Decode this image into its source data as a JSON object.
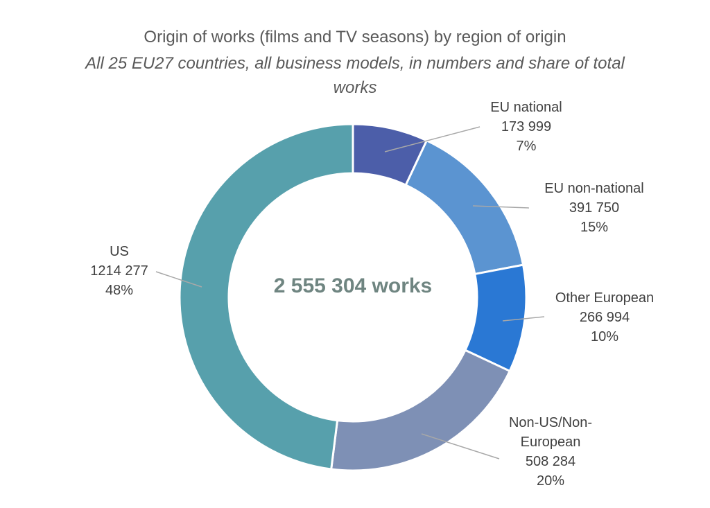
{
  "chart_data": {
    "type": "pie",
    "donut": true,
    "title": "Origin of works (films and TV seasons) by region of origin",
    "subtitle": "All 25 EU27 countries, all business models, in numbers and share of total works",
    "subtitle_lines": [
      "All 25 EU27 countries, all business models, in numbers and share of total",
      "works"
    ],
    "center_label": "2 555 304 works",
    "total_works": 2555304,
    "start_angle_deg": 0,
    "direction": "clockwise",
    "legend_position": "callout-labels",
    "segments": [
      {
        "label": "EU national",
        "value": 173999,
        "value_text": "173 999",
        "share_pct": 7,
        "share_text": "7%",
        "color": "#4c5ea9"
      },
      {
        "label": "EU non-national",
        "value": 391750,
        "value_text": "391 750",
        "share_pct": 15,
        "share_text": "15%",
        "color": "#5b94d1"
      },
      {
        "label": "Other European",
        "value": 266994,
        "value_text": "266 994",
        "share_pct": 10,
        "share_text": "10%",
        "color": "#2a78d4"
      },
      {
        "label": "Non-US/Non-European",
        "value": 508284,
        "value_text": "508 284",
        "share_pct": 20,
        "share_text": "20%",
        "color": "#7e90b5"
      },
      {
        "label": "US",
        "value": 1214277,
        "value_text": "1214 277",
        "share_pct": 48,
        "share_text": "48%",
        "color": "#57a0ac"
      }
    ]
  },
  "colors": {
    "background": "#ffffff",
    "title_text": "#595959",
    "label_text": "#404040",
    "center_text": "#6f8581",
    "leader_line": "#a8a8a8",
    "segment_gap": "#ffffff"
  }
}
